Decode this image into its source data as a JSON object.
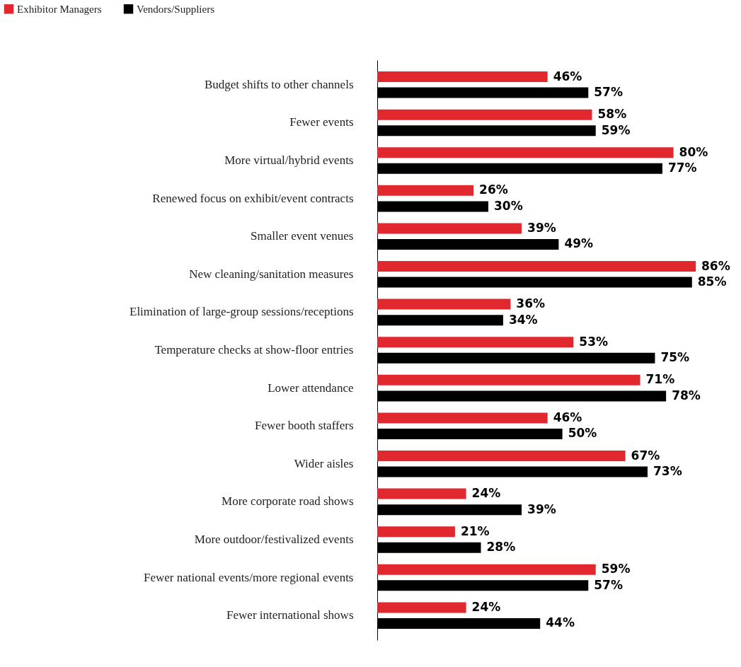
{
  "chart_data": {
    "type": "bar",
    "orientation": "horizontal",
    "legend": "top left",
    "categories": [
      "Budget shifts to other channels",
      "Fewer events",
      "More virtual/hybrid events",
      "Renewed focus on exhibit/event contracts",
      "Smaller event venues",
      "New cleaning/sanitation measures",
      "Elimination of large-group sessions/receptions",
      "Temperature checks at show-floor entries",
      "Lower attendance",
      "Fewer booth staffers",
      "Wider aisles",
      "More corporate road shows",
      "More outdoor/festivalized events",
      "Fewer national events/more regional events",
      "Fewer international shows"
    ],
    "series": [
      {
        "name": "Exhibitor Managers",
        "color": "#e0282e",
        "values": [
          46,
          58,
          80,
          26,
          39,
          86,
          36,
          53,
          71,
          46,
          67,
          24,
          21,
          59,
          24
        ],
        "value_labels": [
          "46%",
          "58%",
          "80%",
          "26%",
          "39%",
          "86%",
          "36%",
          "53%",
          "71%",
          "46%",
          "67%",
          "24%",
          "21%",
          "59%",
          "24%"
        ]
      },
      {
        "name": "Vendors/Suppliers",
        "color": "#000000",
        "values": [
          57,
          59,
          77,
          30,
          49,
          85,
          34,
          75,
          78,
          50,
          73,
          39,
          28,
          57,
          44
        ],
        "value_labels": [
          "57%",
          "59%",
          "77%",
          "30%",
          "49%",
          "85%",
          "34%",
          "75%",
          "78%",
          "50%",
          "73%",
          "39%",
          "28%",
          "57%",
          "44%"
        ]
      }
    ]
  }
}
